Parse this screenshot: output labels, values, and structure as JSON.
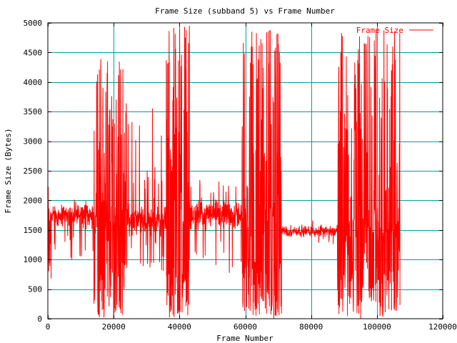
{
  "chart_data": {
    "type": "line",
    "title": "Frame Size (subband 5) vs Frame Number",
    "xlabel": "Frame Number",
    "ylabel": "Frame Size (Bytes)",
    "xlim": [
      0,
      120000
    ],
    "ylim": [
      0,
      5000
    ],
    "xticks": [
      0,
      20000,
      40000,
      60000,
      80000,
      100000,
      120000
    ],
    "yticks": [
      0,
      500,
      1000,
      1500,
      2000,
      2500,
      3000,
      3500,
      4000,
      4500,
      5000
    ],
    "grid": true,
    "legend_position": "top-right",
    "series_color": "#ff0000",
    "grid_color": "#00a0a0",
    "series": [
      {
        "name": "Frame Size",
        "x_start": 0,
        "x_end": 107000,
        "segments": [
          {
            "x": [
              0,
              1000
            ],
            "base": 1700,
            "spread": 700,
            "spikes": 6,
            "spike_low": 0,
            "spike_high": 2450
          },
          {
            "x": [
              1000,
              14000
            ],
            "base": 1750,
            "spread": 250,
            "spikes": 18,
            "spike_low": 900,
            "spike_high": 2050
          },
          {
            "x": [
              14000,
              24000
            ],
            "base": 1650,
            "spread": 600,
            "spikes": 120,
            "spike_low": 0,
            "spike_high": 4450
          },
          {
            "x": [
              24000,
              36000
            ],
            "base": 1650,
            "spread": 300,
            "spikes": 35,
            "spike_low": 800,
            "spike_high": 3620
          },
          {
            "x": [
              36000,
              43000
            ],
            "base": 1600,
            "spread": 700,
            "spikes": 140,
            "spike_low": 0,
            "spike_high": 4950
          },
          {
            "x": [
              43000,
              59000
            ],
            "base": 1750,
            "spread": 300,
            "spikes": 40,
            "spike_low": 700,
            "spike_high": 2350
          },
          {
            "x": [
              59000,
              71000
            ],
            "base": 1700,
            "spread": 650,
            "spikes": 170,
            "spike_low": 0,
            "spike_high": 4950
          },
          {
            "x": [
              71000,
              88000
            ],
            "base": 1480,
            "spread": 120,
            "spikes": 6,
            "spike_low": 1250,
            "spike_high": 1800
          },
          {
            "x": [
              88000,
              107000
            ],
            "base": 1450,
            "spread": 650,
            "spikes": 220,
            "spike_low": 0,
            "spike_high": 4900
          }
        ]
      }
    ]
  }
}
